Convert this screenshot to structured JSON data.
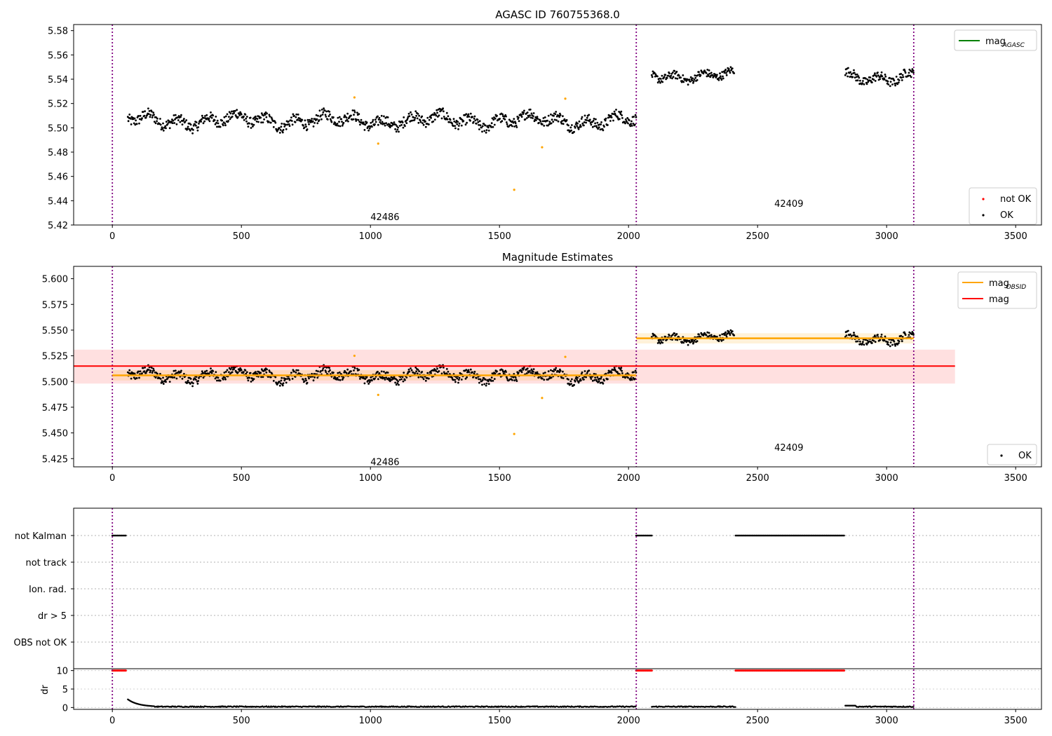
{
  "chart_data": [
    {
      "type": "scatter",
      "title": "AGASC ID 760755368.0",
      "xlim": [
        -150,
        3600
      ],
      "ylim": [
        5.42,
        5.585
      ],
      "xticks": [
        "0",
        "500",
        "1000",
        "1500",
        "2000",
        "2500",
        "3000",
        "3500"
      ],
      "yticks": [
        "5.42",
        "5.44",
        "5.46",
        "5.48",
        "5.50",
        "5.52",
        "5.54",
        "5.56",
        "5.58"
      ],
      "obsid_boundaries": [
        0,
        2030,
        3105
      ],
      "annotations": [
        {
          "text": "42486",
          "x": 1000,
          "y": 5.427
        },
        {
          "text": "42409",
          "x": 2565,
          "y": 5.438
        }
      ],
      "legends": [
        {
          "loc": "upper right",
          "entries": [
            {
              "label": "mag",
              "sub": "AGASC",
              "color": "#008000",
              "kind": "line"
            }
          ]
        },
        {
          "loc": "lower right",
          "entries": [
            {
              "label": "not OK",
              "color": "#ff0000",
              "kind": "dot"
            },
            {
              "label": "OK",
              "color": "#000000",
              "kind": "dot"
            }
          ]
        }
      ],
      "series": [
        {
          "name": "OK",
          "color": "#000000",
          "segments": [
            {
              "x_start": 60,
              "x_end": 2030,
              "center": 5.506,
              "amplitude": 0.008
            },
            {
              "x_start": 2090,
              "x_end": 2410,
              "center": 5.543,
              "amplitude": 0.006
            },
            {
              "x_start": 2840,
              "x_end": 3105,
              "center": 5.542,
              "amplitude": 0.007
            }
          ]
        },
        {
          "name": "orange outliers",
          "color": "#ffa500",
          "points": [
            [
              938,
              5.525
            ],
            [
              1030,
              5.487
            ],
            [
              1557,
              5.449
            ],
            [
              1665,
              5.484
            ],
            [
              1755,
              5.524
            ]
          ]
        }
      ]
    },
    {
      "type": "scatter",
      "title": "Magnitude Estimates",
      "xlim": [
        -150,
        3600
      ],
      "ylim": [
        5.417,
        5.612
      ],
      "xticks": [
        "0",
        "500",
        "1000",
        "1500",
        "2000",
        "2500",
        "3000",
        "3500"
      ],
      "yticks": [
        "5.425",
        "5.450",
        "5.475",
        "5.500",
        "5.525",
        "5.550",
        "5.575",
        "5.600"
      ],
      "obsid_boundaries": [
        0,
        2030,
        3105
      ],
      "annotations": [
        {
          "text": "42486",
          "x": 1000,
          "y": 5.422
        },
        {
          "text": "42409",
          "x": 2565,
          "y": 5.436
        }
      ],
      "legends": [
        {
          "loc": "upper right",
          "entries": [
            {
              "label": "mag",
              "sub": "OBSID",
              "color": "#ffa500",
              "kind": "line"
            },
            {
              "label": "mag",
              "color": "#ff0000",
              "kind": "line"
            }
          ]
        },
        {
          "loc": "lower right",
          "entries": [
            {
              "label": "OK",
              "color": "#000000",
              "kind": "dot"
            }
          ]
        }
      ],
      "mag": {
        "value": 5.515,
        "band": [
          5.498,
          5.531
        ],
        "x_range": [
          -150,
          3265
        ],
        "color": "#ff0000"
      },
      "mag_obsid": [
        {
          "x_range": [
            0,
            2030
          ],
          "value": 5.506,
          "band": [
            5.501,
            5.511
          ]
        },
        {
          "x_range": [
            2030,
            3105
          ],
          "value": 5.542,
          "band": [
            5.537,
            5.547
          ]
        }
      ]
    },
    {
      "type": "scatter",
      "title": "",
      "xlim": [
        -150,
        3600
      ],
      "flag_labels": [
        "not Kalman",
        "not track",
        "Ion. rad.",
        "dr > 5",
        "OBS not OK"
      ],
      "not_kalman_ranges": [
        [
          0,
          55
        ],
        [
          2030,
          2090
        ],
        [
          2415,
          2835
        ]
      ],
      "dr": {
        "ylabel": "dr",
        "ylim": [
          -0.5,
          10.5
        ],
        "yticks": [
          "0",
          "5",
          "10"
        ],
        "capped_value": 10,
        "capped_ranges": [
          [
            0,
            55
          ],
          [
            2030,
            2090
          ],
          [
            2415,
            2835
          ]
        ],
        "tail_start": 2.0,
        "baseline": 0.1
      },
      "xticks": [
        "0",
        "500",
        "1000",
        "1500",
        "2000",
        "2500",
        "3000",
        "3500"
      ]
    }
  ]
}
